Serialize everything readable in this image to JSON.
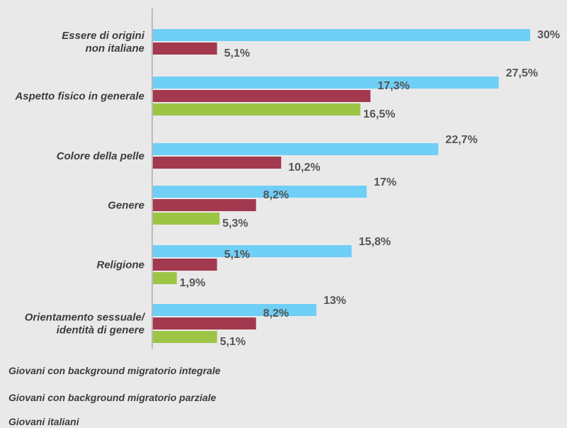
{
  "chart_data": {
    "type": "bar",
    "orientation": "horizontal",
    "categories": [
      [
        "Essere di origini",
        "non italiane"
      ],
      [
        "Aspetto fisico in generale"
      ],
      [
        "Colore della pelle"
      ],
      [
        "Genere"
      ],
      [
        "Religione"
      ],
      [
        "Orientamento sessuale/",
        "identità di genere"
      ]
    ],
    "series": [
      {
        "name": "Giovani con background migratorio integrale",
        "color": "#6fcff6",
        "values": [
          30,
          27.5,
          22.7,
          17,
          15.8,
          13
        ],
        "labels": [
          "30%",
          "27,5%",
          "22,7%",
          "17%",
          "15,8%",
          "13%"
        ]
      },
      {
        "name": "Giovani con background migratorio parziale",
        "color": "#a3394f",
        "values": [
          5.1,
          17.3,
          10.2,
          8.2,
          5.1,
          8.2
        ],
        "labels": [
          "5,1%",
          "17,3%",
          "10,2%",
          "8,2%",
          "5,1%",
          "8,2%"
        ]
      },
      {
        "name": "Giovani italiani",
        "color": "#9cc545",
        "values": [
          null,
          16.5,
          null,
          5.3,
          1.9,
          5.1
        ],
        "labels": [
          null,
          "16,5%",
          null,
          "5,3%",
          "1,9%",
          "5,1%"
        ]
      }
    ],
    "legend_position": "bottom-left",
    "grid": false
  }
}
